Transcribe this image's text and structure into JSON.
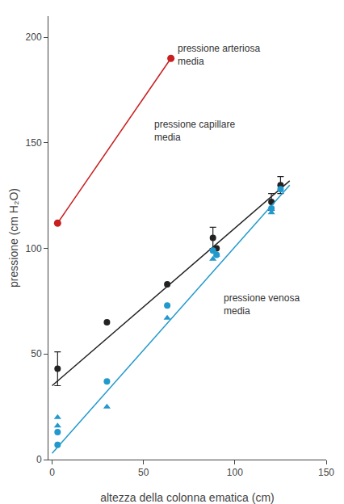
{
  "chart_data": {
    "type": "scatter",
    "xlabel": "altezza della colonna ematica (cm)",
    "ylabel": "pressione (cm H₂O)",
    "xlim": [
      -2,
      150
    ],
    "ylim": [
      0,
      210
    ],
    "xticks": [
      0,
      50,
      100,
      150
    ],
    "yticks": [
      0,
      50,
      100,
      150,
      200
    ],
    "grid": false,
    "series": [
      {
        "type": "line",
        "color": "#c82020",
        "marker": "circle",
        "line_style": "solid",
        "x": [
          3,
          65
        ],
        "values": [
          112,
          190
        ]
      },
      {
        "type": "line",
        "color": "#222222",
        "line_style": "solid",
        "x": [
          0,
          130
        ],
        "values": [
          35,
          132
        ]
      },
      {
        "type": "scatter",
        "color": "#222222",
        "marker": "circle",
        "x": [
          3,
          30,
          63,
          88,
          90,
          120,
          125
        ],
        "values": [
          43,
          65,
          83,
          105,
          100,
          122,
          130
        ],
        "errors": [
          8,
          0,
          0,
          5,
          0,
          4,
          4
        ]
      },
      {
        "type": "line",
        "color": "#2299cc",
        "line_style": "solid",
        "x": [
          0,
          130
        ],
        "values": [
          3,
          130
        ]
      },
      {
        "type": "scatter",
        "color": "#2299cc",
        "marker": "circle",
        "x": [
          3,
          3,
          30,
          63,
          88,
          90,
          120,
          125
        ],
        "values": [
          7,
          13,
          37,
          73,
          99,
          97,
          119,
          128
        ]
      },
      {
        "type": "scatter",
        "color": "#2299cc",
        "marker": "triangle",
        "x": [
          3,
          3,
          30,
          63,
          88,
          90,
          120
        ],
        "values": [
          16,
          20,
          25,
          67,
          95,
          97,
          117
        ]
      }
    ],
    "annotations": [
      {
        "text": "pressione arteriosa\nmedia",
        "x": 68,
        "y": 198
      },
      {
        "text": "pressione capillare\nmedia",
        "x": 55,
        "y": 162
      },
      {
        "text": "pressione venosa\nmedia",
        "x": 93,
        "y": 80
      }
    ]
  }
}
